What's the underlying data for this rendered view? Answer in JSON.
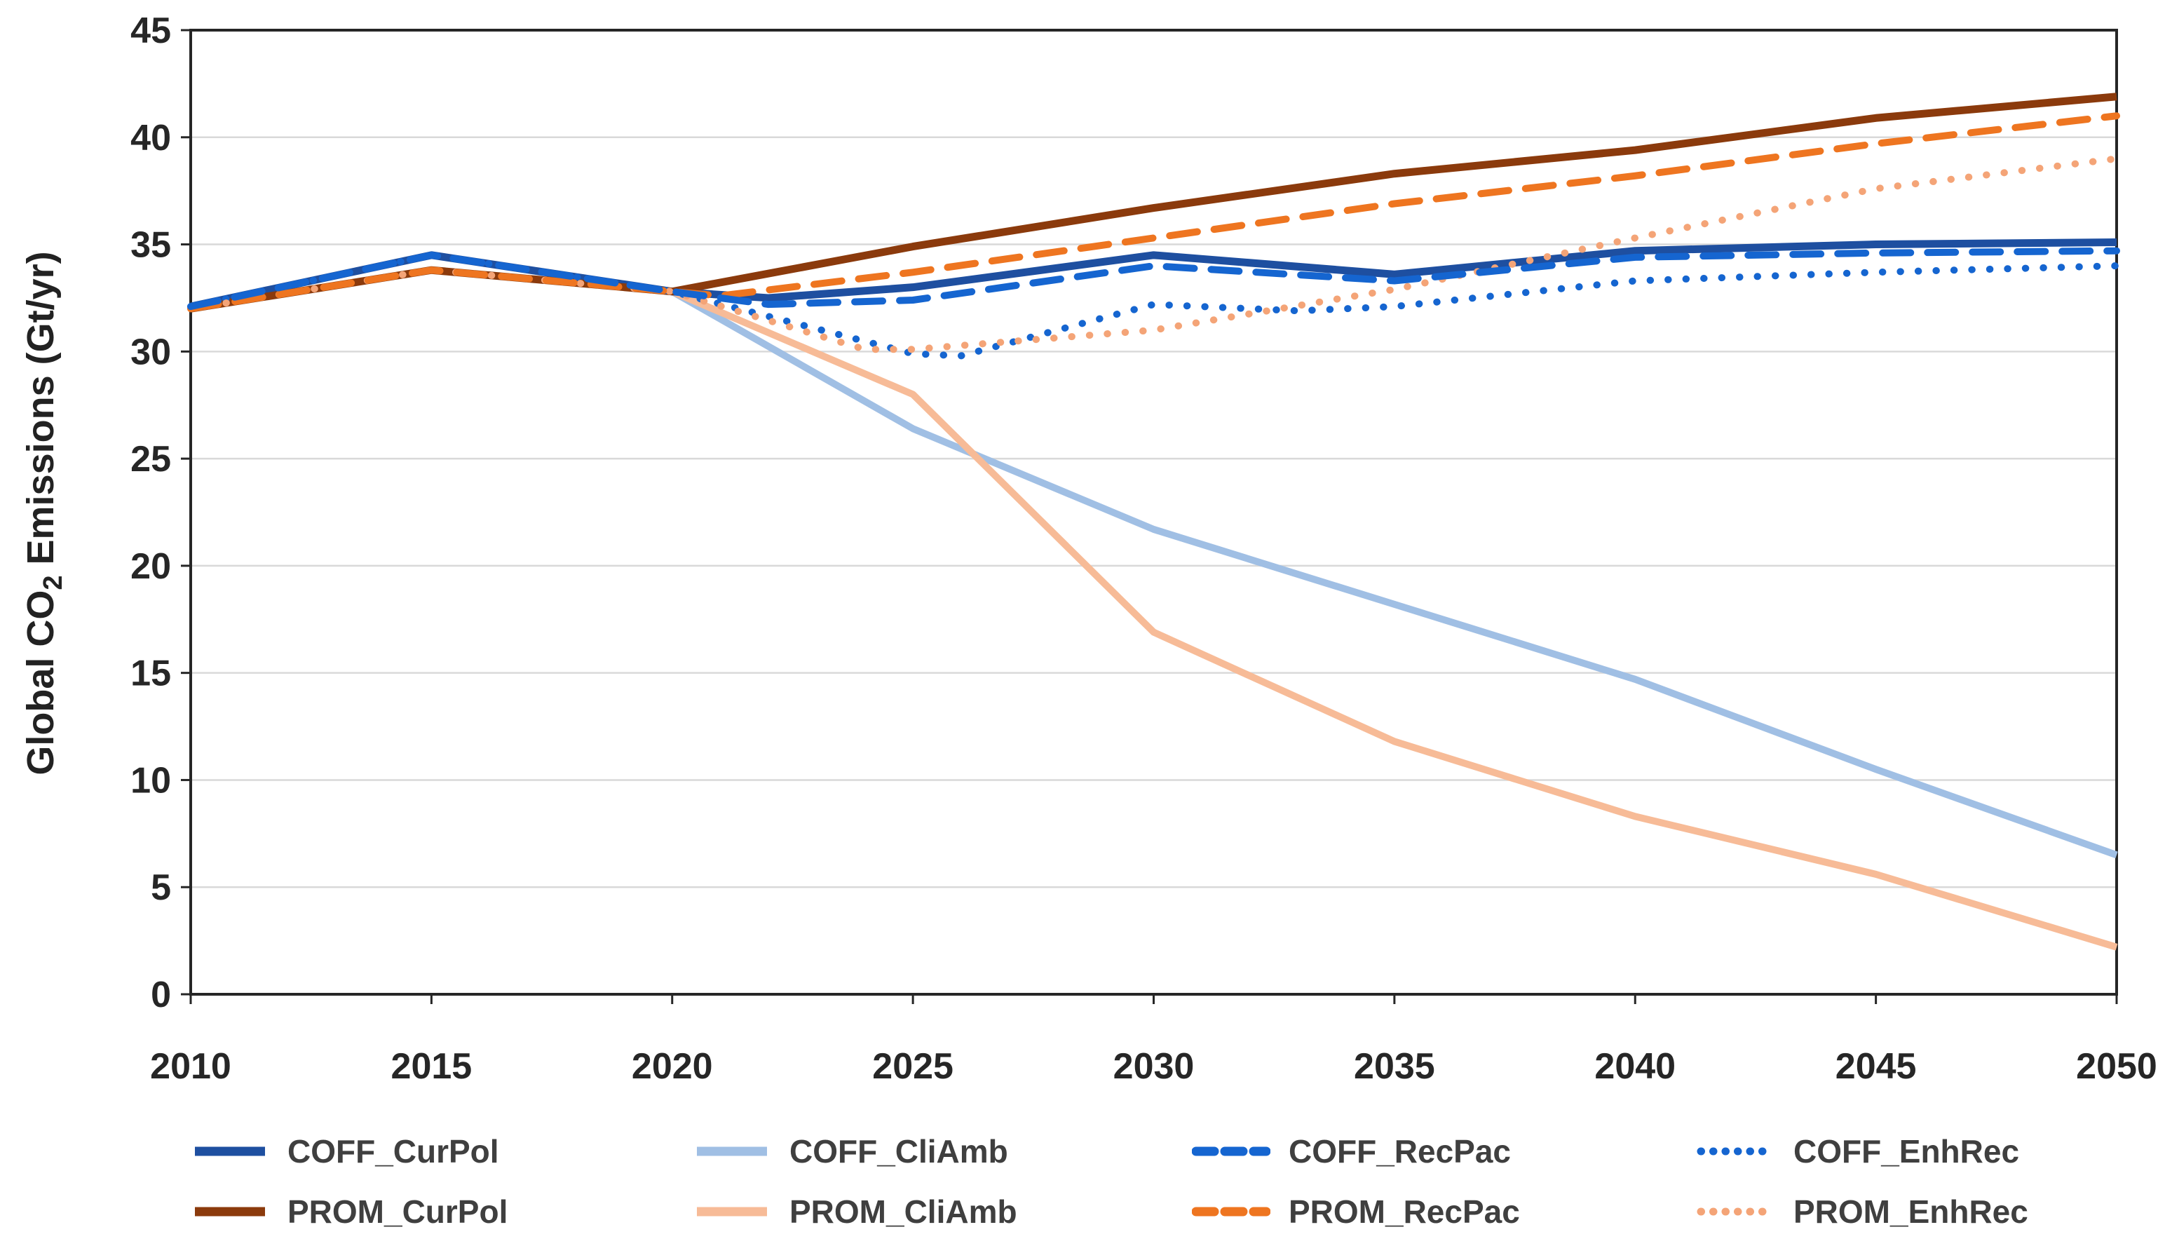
{
  "figure": {
    "background_color": "#FFFFFF",
    "grid_color": "#D9D9D9",
    "axis_color": "#262626",
    "tick_label_color": "#262626",
    "legend_label_color": "#3F3F3F"
  },
  "y_axis": {
    "title_parts": {
      "pre": "Global CO",
      "sub": "2",
      "post": " Emissions (Gt/yr)"
    },
    "tick_labels": [
      "0",
      "5",
      "10",
      "15",
      "20",
      "25",
      "30",
      "35",
      "40",
      "45"
    ]
  },
  "x_axis": {
    "tick_labels": [
      "2010",
      "2015",
      "2020",
      "2025",
      "2030",
      "2035",
      "2040",
      "2045",
      "2050"
    ]
  },
  "legend": {
    "items": [
      {
        "series": "COFF_CurPol",
        "label": "COFF_CurPol",
        "row": 0,
        "col": 0
      },
      {
        "series": "COFF_CliAmb",
        "label": "COFF_CliAmb",
        "row": 0,
        "col": 1
      },
      {
        "series": "COFF_RecPac",
        "label": "COFF_RecPac",
        "row": 0,
        "col": 2
      },
      {
        "series": "COFF_EnhRec",
        "label": "COFF_EnhRec",
        "row": 0,
        "col": 3
      },
      {
        "series": "PROM_CurPol",
        "label": "PROM_CurPol",
        "row": 1,
        "col": 0
      },
      {
        "series": "PROM_CliAmb",
        "label": "PROM_CliAmb",
        "row": 1,
        "col": 1
      },
      {
        "series": "PROM_RecPac",
        "label": "PROM_RecPac",
        "row": 1,
        "col": 2
      },
      {
        "series": "PROM_EnhRec",
        "label": "PROM_EnhRec",
        "row": 1,
        "col": 3
      }
    ]
  },
  "chart_data": {
    "type": "line",
    "title": "",
    "xlabel": "",
    "ylabel": "Global CO2 Emissions (Gt/yr)",
    "xlim": [
      2010,
      2050
    ],
    "ylim": [
      0,
      45
    ],
    "ytick_step": 5,
    "xtick_step": 5,
    "grid": "horizontal",
    "legend_position": "bottom",
    "x_ticks": [
      2010,
      2015,
      2020,
      2025,
      2030,
      2035,
      2040,
      2045,
      2050
    ],
    "series": [
      {
        "name": "COFF_CurPol",
        "color": "#1E4FA0",
        "style": "solid",
        "width": 11,
        "points": [
          [
            2010,
            32.1
          ],
          [
            2015,
            34.5
          ],
          [
            2020,
            32.8
          ],
          [
            2022,
            32.5
          ],
          [
            2025,
            33.0
          ],
          [
            2030,
            34.5
          ],
          [
            2035,
            33.6
          ],
          [
            2040,
            34.7
          ],
          [
            2045,
            35.0
          ],
          [
            2050,
            35.1
          ]
        ]
      },
      {
        "name": "COFF_CliAmb",
        "color": "#A0BFE4",
        "style": "solid",
        "width": 10,
        "points": [
          [
            2010,
            32.1
          ],
          [
            2015,
            34.5
          ],
          [
            2020,
            32.8
          ],
          [
            2025,
            26.4
          ],
          [
            2030,
            21.7
          ],
          [
            2035,
            18.2
          ],
          [
            2040,
            14.7
          ],
          [
            2045,
            10.5
          ],
          [
            2050,
            6.5
          ]
        ]
      },
      {
        "name": "COFF_RecPac",
        "color": "#1565D0",
        "style": "dashed",
        "width": 10,
        "points": [
          [
            2010,
            32.1
          ],
          [
            2015,
            34.5
          ],
          [
            2020,
            32.8
          ],
          [
            2022,
            32.2
          ],
          [
            2025,
            32.4
          ],
          [
            2030,
            34.0
          ],
          [
            2035,
            33.3
          ],
          [
            2040,
            34.4
          ],
          [
            2045,
            34.6
          ],
          [
            2050,
            34.7
          ]
        ]
      },
      {
        "name": "COFF_EnhRec",
        "color": "#1565D0",
        "style": "dotted",
        "width": 10,
        "points": [
          [
            2010,
            32.1
          ],
          [
            2015,
            34.5
          ],
          [
            2020,
            32.8
          ],
          [
            2025,
            29.9
          ],
          [
            2026,
            29.8
          ],
          [
            2030,
            32.2
          ],
          [
            2033,
            31.9
          ],
          [
            2035,
            32.1
          ],
          [
            2040,
            33.3
          ],
          [
            2045,
            33.7
          ],
          [
            2050,
            34.0
          ]
        ]
      },
      {
        "name": "PROM_CurPol",
        "color": "#8B3A0C",
        "style": "solid",
        "width": 11,
        "points": [
          [
            2010,
            32.0
          ],
          [
            2015,
            33.8
          ],
          [
            2020,
            32.8
          ],
          [
            2025,
            34.9
          ],
          [
            2030,
            36.7
          ],
          [
            2035,
            38.3
          ],
          [
            2040,
            39.4
          ],
          [
            2045,
            40.9
          ],
          [
            2050,
            41.9
          ]
        ]
      },
      {
        "name": "PROM_CliAmb",
        "color": "#F7BB97",
        "style": "solid",
        "width": 10,
        "points": [
          [
            2010,
            32.0
          ],
          [
            2015,
            33.8
          ],
          [
            2020,
            32.8
          ],
          [
            2025,
            28.0
          ],
          [
            2030,
            16.9
          ],
          [
            2035,
            11.8
          ],
          [
            2040,
            8.3
          ],
          [
            2045,
            5.6
          ],
          [
            2050,
            2.2
          ]
        ]
      },
      {
        "name": "PROM_RecPac",
        "color": "#EE7520",
        "style": "dashed",
        "width": 10,
        "points": [
          [
            2010,
            32.0
          ],
          [
            2015,
            33.8
          ],
          [
            2020,
            32.8
          ],
          [
            2021,
            32.6
          ],
          [
            2025,
            33.7
          ],
          [
            2030,
            35.3
          ],
          [
            2035,
            36.9
          ],
          [
            2040,
            38.2
          ],
          [
            2045,
            39.7
          ],
          [
            2050,
            41.0
          ]
        ]
      },
      {
        "name": "PROM_EnhRec",
        "color": "#F4A477",
        "style": "dotted",
        "width": 10,
        "points": [
          [
            2010,
            32.0
          ],
          [
            2015,
            33.8
          ],
          [
            2020,
            32.8
          ],
          [
            2024,
            30.1
          ],
          [
            2025,
            30.1
          ],
          [
            2030,
            31.0
          ],
          [
            2035,
            32.9
          ],
          [
            2040,
            35.3
          ],
          [
            2045,
            37.6
          ],
          [
            2050,
            39.0
          ]
        ]
      }
    ]
  }
}
